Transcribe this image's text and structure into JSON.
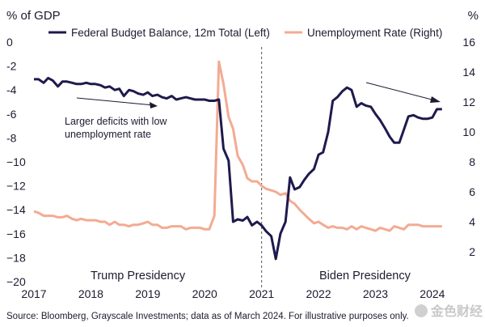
{
  "chart_data": {
    "type": "line",
    "left_axis_unit": "% of GDP",
    "right_axis_unit": "%",
    "x_tick_labels": [
      "2017",
      "2018",
      "2019",
      "2020",
      "2021",
      "2022",
      "2023",
      "2024"
    ],
    "x_ticks": [
      2017,
      2018,
      2019,
      2020,
      2021,
      2022,
      2023,
      2024
    ],
    "xlim": [
      2017,
      2024.3
    ],
    "y_left_ticks": [
      0,
      -2,
      -4,
      -6,
      -8,
      -10,
      -12,
      -14,
      -16,
      -18,
      -20
    ],
    "y_left_tick_labels": [
      "0",
      "-2",
      "-4",
      "-6",
      "-8",
      "−10",
      "−12",
      "−14",
      "−16",
      "−18",
      "−20"
    ],
    "ylim_left": [
      -20,
      0
    ],
    "y_right_ticks": [
      2,
      4,
      6,
      8,
      10,
      12,
      14,
      16
    ],
    "y_right_tick_labels": [
      "2",
      "4",
      "6",
      "8",
      "10",
      "12",
      "14",
      "16"
    ],
    "ylim_right": [
      0,
      16
    ],
    "legend_placement": "top",
    "grid": false,
    "divider_x": 2021.0,
    "series": [
      {
        "name": "Federal Budget Balance, 12m Total (Left)",
        "axis": "left",
        "color": "#1e1a4d",
        "x": [
          2017.0,
          2017.08,
          2017.17,
          2017.25,
          2017.33,
          2017.42,
          2017.5,
          2017.58,
          2017.67,
          2017.75,
          2017.83,
          2017.92,
          2018.0,
          2018.08,
          2018.17,
          2018.25,
          2018.33,
          2018.42,
          2018.5,
          2018.58,
          2018.67,
          2018.75,
          2018.83,
          2018.92,
          2019.0,
          2019.08,
          2019.17,
          2019.25,
          2019.33,
          2019.42,
          2019.5,
          2019.58,
          2019.67,
          2019.75,
          2019.83,
          2019.92,
          2020.0,
          2020.08,
          2020.17,
          2020.25,
          2020.33,
          2020.42,
          2020.5,
          2020.58,
          2020.67,
          2020.75,
          2020.83,
          2020.92,
          2021.0,
          2021.08,
          2021.17,
          2021.25,
          2021.33,
          2021.42,
          2021.5,
          2021.58,
          2021.67,
          2021.75,
          2021.83,
          2021.92,
          2022.0,
          2022.08,
          2022.17,
          2022.25,
          2022.33,
          2022.42,
          2022.5,
          2022.58,
          2022.67,
          2022.75,
          2022.83,
          2022.92,
          2023.0,
          2023.08,
          2023.17,
          2023.25,
          2023.33,
          2023.42,
          2023.5,
          2023.58,
          2023.67,
          2023.75,
          2023.83,
          2023.92,
          2024.0,
          2024.08,
          2024.17
        ],
        "values": [
          -3.1,
          -3.1,
          -3.4,
          -3.0,
          -3.2,
          -3.7,
          -3.3,
          -3.3,
          -3.4,
          -3.5,
          -3.5,
          -3.4,
          -3.5,
          -3.5,
          -3.6,
          -3.8,
          -3.7,
          -4.0,
          -3.9,
          -4.5,
          -4.0,
          -4.1,
          -4.3,
          -4.4,
          -4.2,
          -4.5,
          -4.4,
          -4.6,
          -4.7,
          -4.5,
          -4.8,
          -4.7,
          -4.6,
          -4.7,
          -4.8,
          -4.8,
          -4.8,
          -4.9,
          -4.9,
          -4.8,
          -8.9,
          -9.9,
          -15.0,
          -14.8,
          -14.9,
          -14.6,
          -15.3,
          -15.0,
          -15.3,
          -15.8,
          -16.2,
          -18.1,
          -16.0,
          -15.0,
          -11.3,
          -12.3,
          -12.1,
          -11.5,
          -11.0,
          -10.6,
          -9.4,
          -9.2,
          -7.5,
          -4.9,
          -4.6,
          -4.1,
          -3.8,
          -4.0,
          -5.4,
          -5.1,
          -5.3,
          -5.4,
          -6.0,
          -6.5,
          -7.2,
          -7.9,
          -8.4,
          -8.4,
          -7.3,
          -6.2,
          -6.1,
          -6.3,
          -6.4,
          -6.4,
          -6.3,
          -5.6,
          -5.6
        ]
      },
      {
        "name": "Unemployment Rate (Right)",
        "axis": "right",
        "color": "#f3ab92",
        "x": [
          2017.0,
          2017.08,
          2017.17,
          2017.25,
          2017.33,
          2017.42,
          2017.5,
          2017.58,
          2017.67,
          2017.75,
          2017.83,
          2017.92,
          2018.0,
          2018.08,
          2018.17,
          2018.25,
          2018.33,
          2018.42,
          2018.5,
          2018.58,
          2018.67,
          2018.75,
          2018.83,
          2018.92,
          2019.0,
          2019.08,
          2019.17,
          2019.25,
          2019.33,
          2019.42,
          2019.5,
          2019.58,
          2019.67,
          2019.75,
          2019.83,
          2019.92,
          2020.0,
          2020.08,
          2020.17,
          2020.25,
          2020.33,
          2020.42,
          2020.5,
          2020.58,
          2020.67,
          2020.75,
          2020.83,
          2020.92,
          2021.0,
          2021.08,
          2021.17,
          2021.25,
          2021.33,
          2021.42,
          2021.5,
          2021.58,
          2021.67,
          2021.75,
          2021.83,
          2021.92,
          2022.0,
          2022.08,
          2022.17,
          2022.25,
          2022.33,
          2022.42,
          2022.5,
          2022.58,
          2022.67,
          2022.75,
          2022.83,
          2022.92,
          2023.0,
          2023.08,
          2023.17,
          2023.25,
          2023.33,
          2023.42,
          2023.5,
          2023.58,
          2023.67,
          2023.75,
          2023.83,
          2023.92,
          2024.0,
          2024.08,
          2024.17
        ],
        "values": [
          4.7,
          4.6,
          4.4,
          4.4,
          4.4,
          4.3,
          4.3,
          4.4,
          4.2,
          4.1,
          4.2,
          4.1,
          4.1,
          4.1,
          4.0,
          4.0,
          3.8,
          4.0,
          3.8,
          3.8,
          3.7,
          3.8,
          3.8,
          3.9,
          4.0,
          3.8,
          3.8,
          3.6,
          3.6,
          3.7,
          3.7,
          3.7,
          3.5,
          3.6,
          3.6,
          3.6,
          3.5,
          3.5,
          4.4,
          14.7,
          13.2,
          11.0,
          10.2,
          8.4,
          7.8,
          6.9,
          6.7,
          6.7,
          6.4,
          6.2,
          6.1,
          6.0,
          5.8,
          5.9,
          5.4,
          5.2,
          4.8,
          4.5,
          4.2,
          3.9,
          4.0,
          3.8,
          3.6,
          3.7,
          3.6,
          3.6,
          3.5,
          3.7,
          3.5,
          3.7,
          3.6,
          3.5,
          3.4,
          3.6,
          3.5,
          3.4,
          3.7,
          3.6,
          3.5,
          3.8,
          3.8,
          3.8,
          3.7,
          3.7,
          3.7,
          3.7,
          3.7
        ]
      }
    ],
    "annotations": {
      "left_text_line1": "Larger deficits with low",
      "left_text_line2": "unemployment rate",
      "left_era": "Trump Presidency",
      "right_era": "Biden Presidency"
    }
  },
  "footer": {
    "source": "Source: Bloomberg, Grayscale Investments; data as of March 2024. For illustrative purposes only.",
    "watermark": "金色财经"
  }
}
